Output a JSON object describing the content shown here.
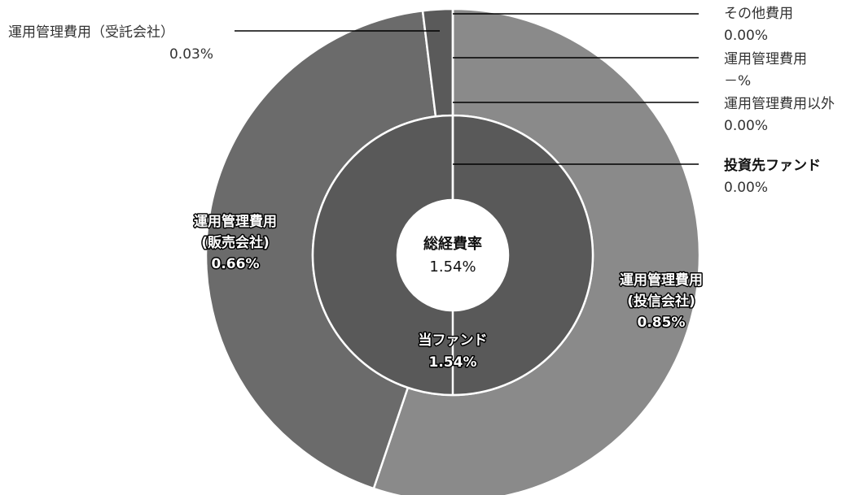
{
  "chart_data": {
    "type": "pie",
    "center": {
      "title": "総経費率",
      "value": "1.54%"
    },
    "outer": [
      {
        "name": "運用管理費用（投信会社）",
        "value": 0.85,
        "label_lines": [
          "運用管理費用",
          "(投信会社)",
          "0.85%"
        ],
        "color": "#8a8a8a"
      },
      {
        "name": "運用管理費用（販売会社）",
        "value": 0.66,
        "label_lines": [
          "運用管理費用",
          "(販売会社)",
          "0.66%"
        ],
        "color": "#6b6b6b"
      },
      {
        "name": "運用管理費用（受託会社）",
        "value": 0.03,
        "label_lines": [
          "運用管理費用（受託会社）",
          "0.03%"
        ],
        "color": "#5a5a5a"
      },
      {
        "name": "その他費用",
        "value": 0.0,
        "label_lines": [
          "その他費用",
          "0.00%"
        ]
      },
      {
        "name": "運用管理費用",
        "value": 0.0,
        "label_lines": [
          "運用管理費用",
          "－%"
        ]
      },
      {
        "name": "運用管理費用以外",
        "value": 0.0,
        "label_lines": [
          "運用管理費用以外",
          "0.00%"
        ]
      }
    ],
    "inner": [
      {
        "name": "当ファンド",
        "value": 1.54,
        "label_lines": [
          "当ファンド",
          "1.54%"
        ],
        "color": "#595959"
      },
      {
        "name": "投資先ファンド",
        "value": 0.0,
        "label_lines": [
          "投資先ファンド",
          "0.00%"
        ]
      }
    ]
  }
}
